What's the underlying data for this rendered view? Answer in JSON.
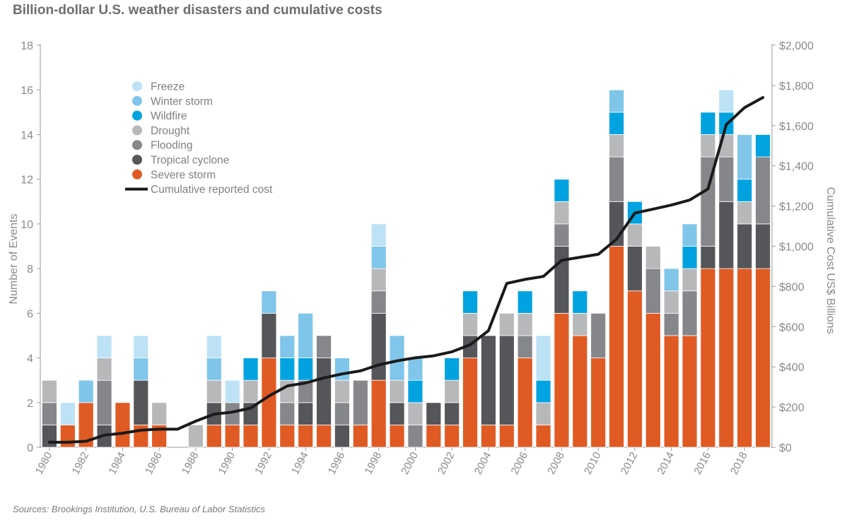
{
  "title": "Billion-dollar U.S. weather disasters and cumulative costs",
  "source": "Sources: Brookings Institution, U.S. Bureau of Labor Statistics",
  "chart_data": {
    "type": "bar",
    "stacked": true,
    "title": "Billion-dollar U.S. weather disasters and cumulative costs",
    "ylabel": "Number of Events",
    "y2label": "Cumulative Cost US$ Billions",
    "ylim": [
      0,
      18
    ],
    "y2lim": [
      0,
      2000
    ],
    "yticks": [
      "0",
      "2",
      "4",
      "6",
      "8",
      "10",
      "12",
      "14",
      "16",
      "18"
    ],
    "y2ticks": [
      "$0",
      "$200",
      "$400",
      "$600",
      "$800",
      "$1,000",
      "$1,200",
      "$1,400",
      "$1,600",
      "$1,800",
      "$2,000"
    ],
    "xticks": [
      "1980",
      "1982",
      "1984",
      "1986",
      "1988",
      "1990",
      "1992",
      "1994",
      "1996",
      "1998",
      "2000",
      "2002",
      "2004",
      "2006",
      "2008",
      "2010",
      "2012",
      "2014",
      "2016",
      "2018"
    ],
    "legend_position": "top-left",
    "grid": false,
    "categories": [
      1980,
      1981,
      1982,
      1983,
      1984,
      1985,
      1986,
      1987,
      1988,
      1989,
      1990,
      1991,
      1992,
      1993,
      1994,
      1995,
      1996,
      1997,
      1998,
      1999,
      2000,
      2001,
      2002,
      2003,
      2004,
      2005,
      2006,
      2007,
      2008,
      2009,
      2010,
      2011,
      2012,
      2013,
      2014,
      2015,
      2016,
      2017,
      2018,
      2019
    ],
    "series": [
      {
        "name": "Severe storm",
        "color": "#e05a23",
        "values": [
          0,
          1,
          2,
          0,
          2,
          1,
          1,
          0,
          0,
          1,
          1,
          1,
          4,
          1,
          1,
          1,
          0,
          1,
          3,
          1,
          0,
          1,
          1,
          4,
          1,
          1,
          4,
          1,
          6,
          5,
          4,
          9,
          7,
          6,
          5,
          5,
          8,
          8,
          8,
          8
        ]
      },
      {
        "name": "Tropical cyclone",
        "color": "#55565a",
        "values": [
          1,
          0,
          0,
          1,
          0,
          2,
          0,
          0,
          0,
          1,
          0,
          1,
          2,
          0,
          1,
          3,
          1,
          0,
          3,
          1,
          0,
          1,
          1,
          1,
          4,
          4,
          0,
          0,
          3,
          0,
          0,
          2,
          2,
          0,
          0,
          0,
          1,
          3,
          2,
          2
        ]
      },
      {
        "name": "Flooding",
        "color": "#86878b",
        "values": [
          1,
          0,
          0,
          2,
          0,
          0,
          0,
          0,
          0,
          0,
          1,
          0,
          0,
          1,
          1,
          1,
          1,
          2,
          1,
          0,
          1,
          0,
          0,
          0,
          0,
          0,
          1,
          0,
          1,
          0,
          2,
          2,
          0,
          2,
          1,
          2,
          4,
          2,
          0,
          3
        ]
      },
      {
        "name": "Drought",
        "color": "#b7b8ba",
        "values": [
          1,
          0,
          0,
          1,
          0,
          0,
          1,
          0,
          1,
          1,
          0,
          1,
          0,
          1,
          0,
          0,
          1,
          0,
          1,
          1,
          1,
          0,
          1,
          1,
          0,
          1,
          1,
          1,
          1,
          1,
          0,
          1,
          1,
          1,
          1,
          1,
          1,
          1,
          1,
          0
        ]
      },
      {
        "name": "Wildfire",
        "color": "#00a3e0",
        "values": [
          0,
          0,
          0,
          0,
          0,
          0,
          0,
          0,
          0,
          0,
          0,
          1,
          0,
          1,
          1,
          0,
          0,
          0,
          0,
          0,
          1,
          0,
          1,
          1,
          0,
          0,
          1,
          1,
          1,
          1,
          0,
          1,
          1,
          0,
          0,
          1,
          1,
          1,
          1,
          1
        ]
      },
      {
        "name": "Winter storm",
        "color": "#7fc6ea",
        "values": [
          0,
          0,
          1,
          0,
          0,
          1,
          0,
          0,
          0,
          1,
          0,
          0,
          1,
          1,
          2,
          0,
          1,
          0,
          1,
          2,
          1,
          0,
          0,
          0,
          0,
          0,
          0,
          0,
          0,
          0,
          0,
          1,
          0,
          0,
          1,
          1,
          0,
          0,
          2,
          0
        ]
      },
      {
        "name": "Freeze",
        "color": "#bde2f6",
        "values": [
          0,
          1,
          0,
          1,
          0,
          1,
          0,
          0,
          0,
          1,
          1,
          0,
          0,
          0,
          0,
          0,
          0,
          0,
          1,
          0,
          0,
          0,
          0,
          0,
          0,
          0,
          0,
          2,
          0,
          0,
          0,
          0,
          0,
          0,
          0,
          0,
          0,
          1,
          0,
          0
        ]
      }
    ],
    "line": {
      "name": "Cumulative reported cost",
      "color": "#1a1a1a",
      "axis": "right",
      "values": [
        25,
        25,
        30,
        60,
        70,
        85,
        90,
        90,
        130,
        165,
        175,
        195,
        255,
        305,
        320,
        345,
        365,
        380,
        410,
        430,
        445,
        455,
        475,
        510,
        580,
        815,
        835,
        850,
        930,
        945,
        960,
        1035,
        1165,
        1185,
        1205,
        1230,
        1285,
        1605,
        1690,
        1740
      ]
    },
    "legend_order": [
      "Freeze",
      "Winter storm",
      "Wildfire",
      "Drought",
      "Flooding",
      "Tropical cyclone",
      "Severe storm",
      "Cumulative reported cost"
    ]
  }
}
